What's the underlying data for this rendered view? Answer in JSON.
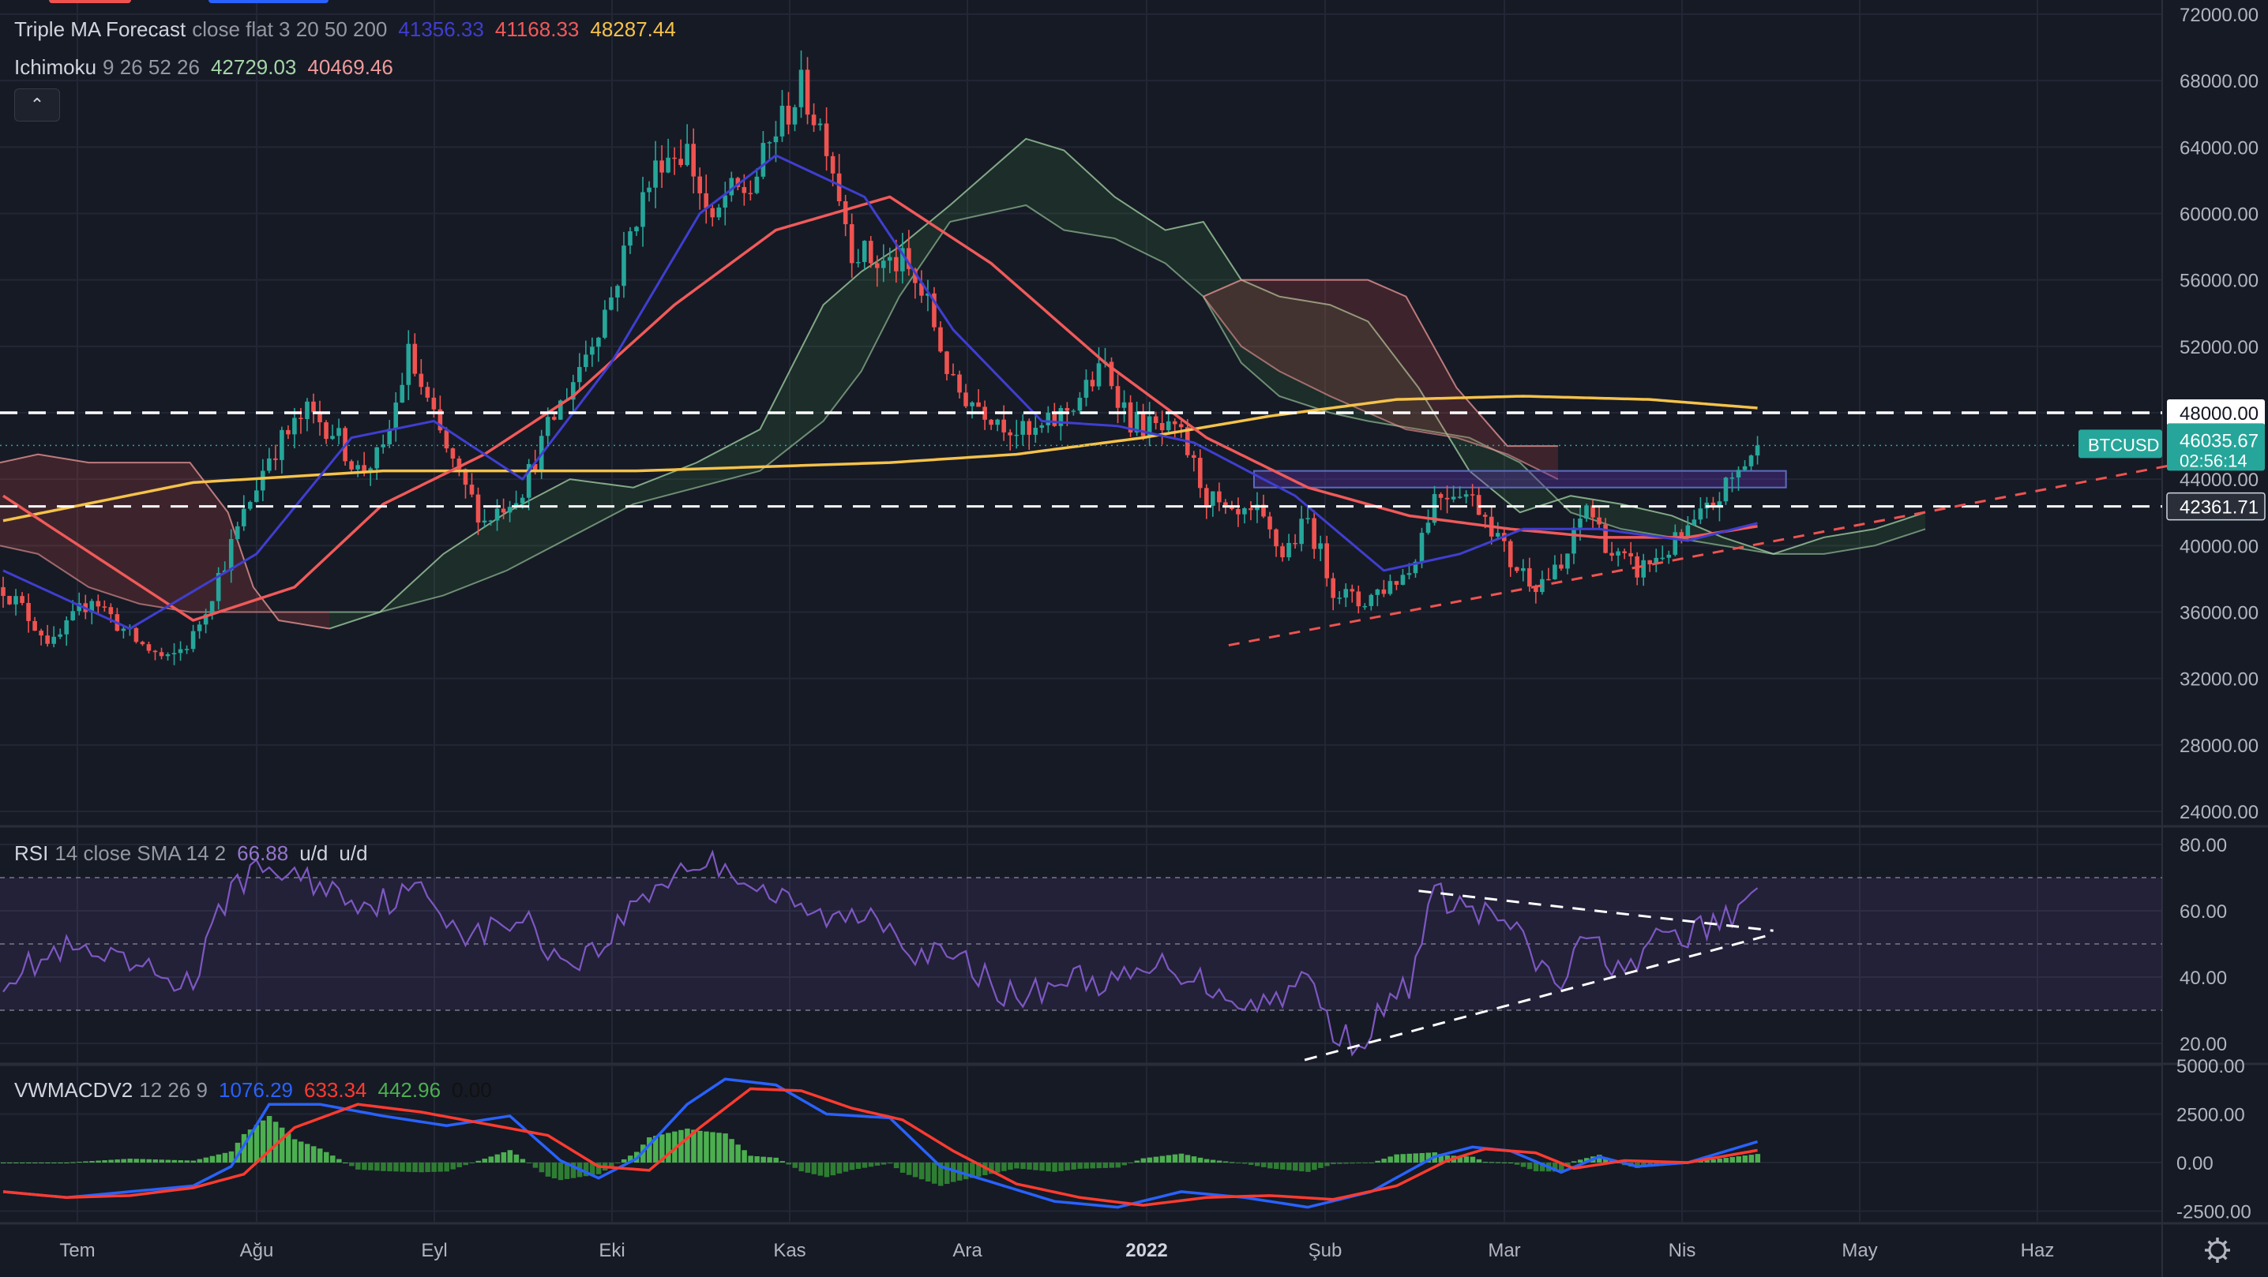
{
  "colors": {
    "background": "#161a25",
    "grid": "#232735",
    "candle_up": "#26a69a",
    "candle_down": "#ef5350",
    "ma20": "#3f3ed0",
    "ma50": "#f05a5a",
    "ma200": "#f5c24a",
    "kumo_bull": "rgba(76,175,80,0.13)",
    "kumo_bear": "rgba(239,83,80,0.18)",
    "rsi_line": "#7e57c2",
    "rsi_band": "rgba(126,87,194,0.12)",
    "macd_line": "#2962ff",
    "signal_line": "#ff3b30",
    "hist_pos": "#4caf50",
    "hist_neg": "#2e7d32",
    "btc_label": "#26a69a"
  },
  "legends": {
    "triple_ma": {
      "name": "Triple MA Forecast",
      "params": "close flat 3 20 50 200",
      "v1": "41356.33",
      "v2": "41168.33",
      "v3": "48287.44"
    },
    "ichimoku": {
      "name": "Ichimoku",
      "params": "9 26 52 26",
      "v1": "42729.03",
      "v2": "40469.46"
    },
    "rsi": {
      "name": "RSI",
      "params": "14 close SMA 14 2",
      "v1": "66.88",
      "v2": "u/d",
      "v3": "u/d"
    },
    "macd": {
      "name": "VWMACDV2",
      "params": "12 26 9",
      "v1": "1076.29",
      "v2": "633.34",
      "v3": "442.96",
      "v4": "0.00"
    }
  },
  "collapse_icon": "chevron-up-icon",
  "settings_icon": "gear-icon",
  "price_labels": {
    "level_48000": "48000.00",
    "level_42361": "42361.71",
    "btc_symbol": "BTCUSD",
    "btc_price": "46035.67",
    "countdown": "02:56:14"
  },
  "chart_data": [
    {
      "type": "candlestick",
      "symbol": "BTCUSD",
      "ylim": [
        24000,
        72000
      ],
      "y_ticks": [
        "72000.00",
        "68000.00",
        "64000.00",
        "60000.00",
        "56000.00",
        "52000.00",
        "48000.00",
        "44000.00",
        "40000.00",
        "36000.00",
        "32000.00",
        "28000.00",
        "24000.00"
      ],
      "y_tick_values": [
        72000,
        68000,
        64000,
        60000,
        56000,
        52000,
        48000,
        44000,
        40000,
        36000,
        32000,
        28000,
        24000
      ],
      "x_tick_labels": [
        "Tem",
        "Ağu",
        "Eyl",
        "Eki",
        "Kas",
        "Ara",
        "2022",
        "Şub",
        "Mar",
        "Nis",
        "May",
        "Haz"
      ],
      "price_anchors": [
        [
          0,
          37500
        ],
        [
          8,
          34000
        ],
        [
          14,
          37000
        ],
        [
          20,
          34500
        ],
        [
          26,
          33000
        ],
        [
          30,
          34500
        ],
        [
          36,
          40000
        ],
        [
          42,
          45500
        ],
        [
          48,
          48000
        ],
        [
          52,
          47000
        ],
        [
          56,
          44500
        ],
        [
          60,
          45500
        ],
        [
          64,
          51500
        ],
        [
          68,
          47500
        ],
        [
          72,
          44000
        ],
        [
          76,
          41500
        ],
        [
          82,
          43500
        ],
        [
          86,
          47000
        ],
        [
          90,
          50000
        ],
        [
          96,
          55000
        ],
        [
          100,
          60000
        ],
        [
          104,
          63500
        ],
        [
          108,
          63800
        ],
        [
          112,
          59000
        ],
        [
          114,
          61000
        ],
        [
          118,
          61500
        ],
        [
          122,
          65000
        ],
        [
          126,
          67500
        ],
        [
          130,
          64500
        ],
        [
          134,
          58000
        ],
        [
          138,
          57000
        ],
        [
          142,
          57000
        ],
        [
          146,
          54500
        ],
        [
          150,
          49500
        ],
        [
          154,
          48500
        ],
        [
          158,
          47500
        ],
        [
          162,
          46500
        ],
        [
          166,
          47500
        ],
        [
          170,
          49000
        ],
        [
          174,
          50800
        ],
        [
          178,
          47500
        ],
        [
          182,
          47000
        ],
        [
          186,
          46500
        ],
        [
          190,
          43000
        ],
        [
          194,
          41500
        ],
        [
          198,
          41800
        ],
        [
          202,
          39500
        ],
        [
          206,
          41500
        ],
        [
          210,
          37500
        ],
        [
          214,
          36500
        ],
        [
          218,
          37500
        ],
        [
          222,
          38500
        ],
        [
          226,
          43000
        ],
        [
          230,
          43500
        ],
        [
          234,
          42000
        ],
        [
          238,
          39000
        ],
        [
          242,
          37800
        ],
        [
          246,
          38500
        ],
        [
          250,
          42500
        ],
        [
          254,
          39500
        ],
        [
          258,
          38500
        ],
        [
          262,
          39500
        ],
        [
          266,
          40800
        ],
        [
          270,
          42500
        ],
        [
          274,
          44500
        ],
        [
          277,
          46035
        ]
      ],
      "ma20": [
        [
          0,
          38500
        ],
        [
          20,
          35000
        ],
        [
          40,
          39500
        ],
        [
          55,
          46500
        ],
        [
          68,
          47500
        ],
        [
          82,
          44000
        ],
        [
          96,
          51000
        ],
        [
          110,
          60000
        ],
        [
          122,
          63500
        ],
        [
          136,
          61000
        ],
        [
          150,
          53000
        ],
        [
          164,
          47500
        ],
        [
          176,
          47200
        ],
        [
          188,
          46200
        ],
        [
          204,
          43000
        ],
        [
          218,
          38500
        ],
        [
          230,
          39500
        ],
        [
          240,
          41000
        ],
        [
          252,
          41000
        ],
        [
          266,
          40300
        ],
        [
          277,
          41356
        ]
      ],
      "ma50": [
        [
          0,
          43000
        ],
        [
          30,
          35500
        ],
        [
          46,
          37500
        ],
        [
          60,
          42500
        ],
        [
          76,
          45500
        ],
        [
          90,
          49000
        ],
        [
          106,
          54500
        ],
        [
          122,
          59000
        ],
        [
          140,
          61000
        ],
        [
          156,
          57000
        ],
        [
          174,
          51000
        ],
        [
          190,
          46500
        ],
        [
          206,
          43500
        ],
        [
          222,
          41800
        ],
        [
          238,
          41000
        ],
        [
          252,
          40500
        ],
        [
          266,
          40500
        ],
        [
          277,
          41168
        ]
      ],
      "ma200": [
        [
          0,
          41500
        ],
        [
          30,
          43800
        ],
        [
          60,
          44500
        ],
        [
          100,
          44500
        ],
        [
          140,
          45000
        ],
        [
          160,
          45500
        ],
        [
          180,
          46500
        ],
        [
          200,
          47800
        ],
        [
          220,
          48800
        ],
        [
          240,
          49000
        ],
        [
          260,
          48800
        ],
        [
          277,
          48287
        ]
      ],
      "kumo": [
        {
          "x": [
            0,
            6,
            14,
            22,
            30,
            36,
            40,
            44,
            52
          ],
          "a": [
            45000,
            45500,
            45000,
            45000,
            45000,
            42000,
            37500,
            35500,
            35000
          ],
          "b": [
            40000,
            39500,
            37500,
            36500,
            36000,
            36000,
            36000,
            36000,
            36000
          ],
          "fill": "bear"
        },
        {
          "x": [
            52,
            60,
            70,
            80,
            90,
            100,
            110,
            120,
            130,
            136,
            142,
            150
          ],
          "a": [
            35000,
            36000,
            39500,
            42000,
            44000,
            43500,
            45000,
            47000,
            54500,
            56500,
            58000,
            60500
          ],
          "b": [
            36000,
            36000,
            37000,
            38500,
            40500,
            42500,
            43500,
            44500,
            47500,
            50500,
            55000,
            59500
          ],
          "fill": "bull"
        },
        {
          "x": [
            150,
            156,
            162,
            168,
            176,
            184,
            190,
            196,
            202,
            210,
            216,
            224,
            232,
            240,
            248,
            256,
            264,
            272,
            280,
            288,
            296,
            304
          ],
          "a": [
            60500,
            62500,
            64500,
            63800,
            61000,
            59000,
            59500,
            56000,
            55000,
            54500,
            53500,
            49500,
            44500,
            42000,
            43000,
            42500,
            41800,
            40500,
            39500,
            40500,
            41000,
            42000
          ],
          "b": [
            59500,
            60000,
            60500,
            59000,
            58500,
            57000,
            55000,
            51000,
            49000,
            48000,
            47500,
            47000,
            46500,
            45000,
            42000,
            41000,
            40500,
            40000,
            39500,
            39500,
            40000,
            41000
          ],
          "fill": "bull"
        },
        {
          "x": [
            190,
            196,
            202,
            210,
            216,
            222,
            230,
            238,
            246
          ],
          "a": [
            55000,
            56000,
            56000,
            56000,
            56000,
            55000,
            49500,
            46000,
            46000
          ],
          "b": [
            55000,
            52000,
            50500,
            49000,
            48000,
            47000,
            46500,
            45500,
            44000
          ],
          "fill": "bear"
        }
      ],
      "hlines": [
        48000,
        42361.71
      ],
      "box": [
        {
          "x0": 198,
          "x1": 282,
          "y0": 43500,
          "y1": 44500
        }
      ],
      "trendlines": [
        {
          "x0": 194,
          "y0": 34000,
          "x1": 345,
          "y1": 45000,
          "style": "red-dashed"
        }
      ],
      "last": {
        "x": 277,
        "price": 46035.67
      }
    },
    {
      "type": "line",
      "name": "RSI",
      "ylim": [
        15,
        82
      ],
      "y_ticks": [
        "80.00",
        "60.00",
        "40.00",
        "20.00"
      ],
      "y_tick_values": [
        80,
        60,
        40,
        20
      ],
      "bands": [
        30,
        50,
        70
      ],
      "anchors": [
        [
          0,
          40
        ],
        [
          10,
          48
        ],
        [
          20,
          43
        ],
        [
          30,
          38
        ],
        [
          36,
          68
        ],
        [
          42,
          73
        ],
        [
          50,
          68
        ],
        [
          58,
          62
        ],
        [
          66,
          66
        ],
        [
          74,
          52
        ],
        [
          82,
          58
        ],
        [
          88,
          45
        ],
        [
          94,
          48
        ],
        [
          100,
          63
        ],
        [
          108,
          74
        ],
        [
          114,
          74
        ],
        [
          120,
          66
        ],
        [
          126,
          60
        ],
        [
          132,
          57
        ],
        [
          138,
          60
        ],
        [
          144,
          48
        ],
        [
          152,
          44
        ],
        [
          160,
          33
        ],
        [
          168,
          40
        ],
        [
          176,
          38
        ],
        [
          184,
          44
        ],
        [
          190,
          38
        ],
        [
          198,
          31
        ],
        [
          206,
          40
        ],
        [
          210,
          24
        ],
        [
          214,
          20
        ],
        [
          218,
          30
        ],
        [
          222,
          38
        ],
        [
          226,
          65
        ],
        [
          232,
          60
        ],
        [
          238,
          56
        ],
        [
          242,
          44
        ],
        [
          246,
          38
        ],
        [
          250,
          52
        ],
        [
          254,
          45
        ],
        [
          258,
          42
        ],
        [
          262,
          54
        ],
        [
          266,
          52
        ],
        [
          270,
          56
        ],
        [
          274,
          59
        ],
        [
          277,
          66.88
        ]
      ],
      "trendlines": [
        {
          "x0": 224,
          "y0": 66,
          "x1": 280,
          "y1": 54
        },
        {
          "x0": 206,
          "y0": 15,
          "x1": 280,
          "y1": 53
        }
      ]
    },
    {
      "type": "bar",
      "name": "VWMACDV2",
      "ylim": [
        -4000,
        6000
      ],
      "y_ticks": [
        "5000.00",
        "2500.00",
        "0.00",
        "-2500.00"
      ],
      "y_tick_values": [
        5000,
        2500,
        0,
        -2500
      ],
      "macd": [
        [
          0,
          -1500
        ],
        [
          10,
          -1800
        ],
        [
          20,
          -1500
        ],
        [
          30,
          -1200
        ],
        [
          36,
          -200
        ],
        [
          42,
          3000
        ],
        [
          50,
          3000
        ],
        [
          60,
          2400
        ],
        [
          70,
          1900
        ],
        [
          80,
          2400
        ],
        [
          88,
          100
        ],
        [
          94,
          -800
        ],
        [
          100,
          200
        ],
        [
          108,
          3000
        ],
        [
          114,
          4300
        ],
        [
          122,
          4000
        ],
        [
          130,
          2500
        ],
        [
          140,
          2300
        ],
        [
          148,
          -200
        ],
        [
          156,
          -1000
        ],
        [
          166,
          -2000
        ],
        [
          176,
          -2300
        ],
        [
          186,
          -1500
        ],
        [
          196,
          -1800
        ],
        [
          206,
          -2300
        ],
        [
          216,
          -1500
        ],
        [
          226,
          300
        ],
        [
          232,
          800
        ],
        [
          238,
          600
        ],
        [
          246,
          -500
        ],
        [
          252,
          300
        ],
        [
          258,
          -200
        ],
        [
          266,
          0
        ],
        [
          277,
          1076
        ]
      ],
      "signal": [
        [
          0,
          -1500
        ],
        [
          10,
          -1800
        ],
        [
          20,
          -1700
        ],
        [
          30,
          -1300
        ],
        [
          38,
          -600
        ],
        [
          46,
          1800
        ],
        [
          56,
          3000
        ],
        [
          66,
          2600
        ],
        [
          76,
          2000
        ],
        [
          86,
          1400
        ],
        [
          94,
          -200
        ],
        [
          102,
          -400
        ],
        [
          110,
          1800
        ],
        [
          118,
          3800
        ],
        [
          126,
          3700
        ],
        [
          134,
          2800
        ],
        [
          142,
          2200
        ],
        [
          150,
          600
        ],
        [
          160,
          -1100
        ],
        [
          170,
          -1800
        ],
        [
          180,
          -2200
        ],
        [
          190,
          -1800
        ],
        [
          200,
          -1700
        ],
        [
          210,
          -1900
        ],
        [
          220,
          -1200
        ],
        [
          228,
          100
        ],
        [
          234,
          700
        ],
        [
          242,
          500
        ],
        [
          248,
          -300
        ],
        [
          256,
          100
        ],
        [
          266,
          0
        ],
        [
          277,
          633
        ]
      ]
    }
  ]
}
